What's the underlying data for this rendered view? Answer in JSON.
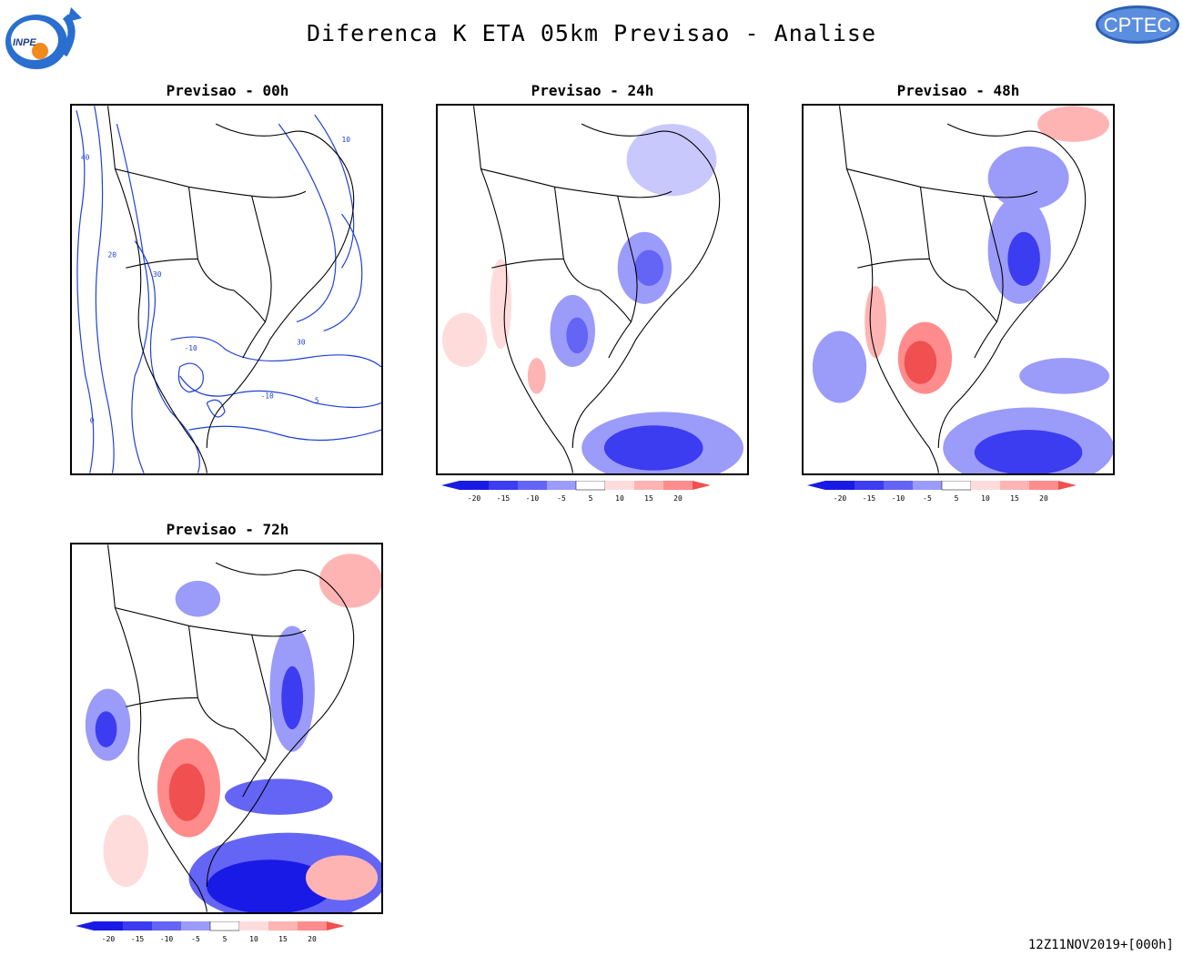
{
  "header": {
    "title": "Diferenca K ETA 05km Previsao - Analise",
    "logo_left": "INPE",
    "logo_right": "CPTEC"
  },
  "panels": [
    {
      "id": "p00",
      "title": "Previsao - 00h",
      "style": "contours",
      "contour_labels": [
        "10",
        "20",
        "30",
        "40",
        "-10",
        "0",
        "5"
      ]
    },
    {
      "id": "p24",
      "title": "Previsao - 24h",
      "style": "shaded"
    },
    {
      "id": "p48",
      "title": "Previsao - 48h",
      "style": "shaded"
    },
    {
      "id": "p72",
      "title": "Previsao - 72h",
      "style": "shaded"
    }
  ],
  "colorbar": {
    "labels": [
      "-20",
      "-15",
      "-10",
      "-5",
      "5",
      "10",
      "15",
      "20"
    ],
    "colors": [
      "#1a1ae6",
      "#3c3cf0",
      "#6464f5",
      "#9b9bfa",
      "#c8c8fd",
      "#ffffff",
      "#ffdcdc",
      "#ffb4b4",
      "#ff8c8c",
      "#f05050"
    ]
  },
  "footer": {
    "timestamp": "12Z11NOV2019+[000h]"
  }
}
